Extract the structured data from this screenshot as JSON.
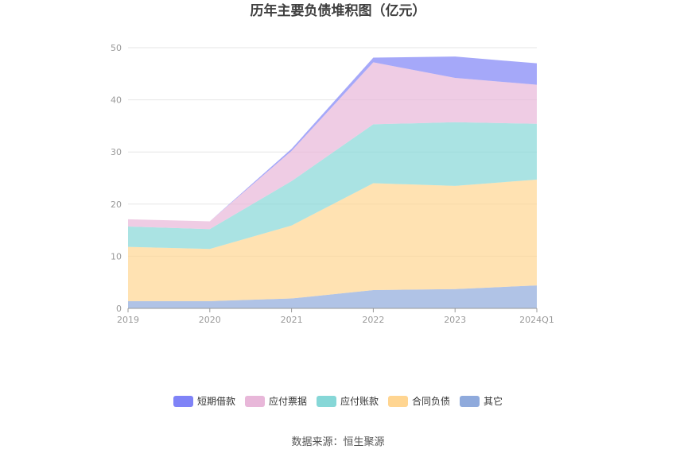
{
  "chart_data": {
    "type": "area",
    "title": "历年主要负债堆积图（亿元）",
    "categories": [
      "2019",
      "2020",
      "2021",
      "2022",
      "2023",
      "2024Q1"
    ],
    "stacked": true,
    "ylim": [
      0,
      50
    ],
    "yticks": [
      "0",
      "10",
      "20",
      "30",
      "40",
      "50"
    ],
    "grid": true,
    "legend_position": "bottom",
    "series": [
      {
        "name": "其它",
        "color": "#8FAADC",
        "values": [
          1.4,
          1.4,
          1.9,
          3.5,
          3.7,
          4.4
        ]
      },
      {
        "name": "合同负债",
        "color": "#FFD591",
        "values": [
          10.4,
          10.0,
          14.0,
          20.5,
          19.8,
          20.3
        ]
      },
      {
        "name": "应付账款",
        "color": "#86D7D7",
        "values": [
          3.9,
          3.8,
          8.5,
          11.3,
          12.2,
          10.7
        ]
      },
      {
        "name": "应付票据",
        "color": "#E8B7D9",
        "values": [
          1.4,
          1.5,
          5.8,
          11.9,
          8.5,
          7.5
        ]
      },
      {
        "name": "短期借款",
        "color": "#7F83F7",
        "values": [
          0,
          0,
          0.4,
          0.9,
          4.1,
          4.1
        ]
      }
    ],
    "legend_order": [
      "短期借款",
      "应付票据",
      "应付账款",
      "合同负债",
      "其它"
    ]
  },
  "source_text": "数据来源：恒生聚源"
}
